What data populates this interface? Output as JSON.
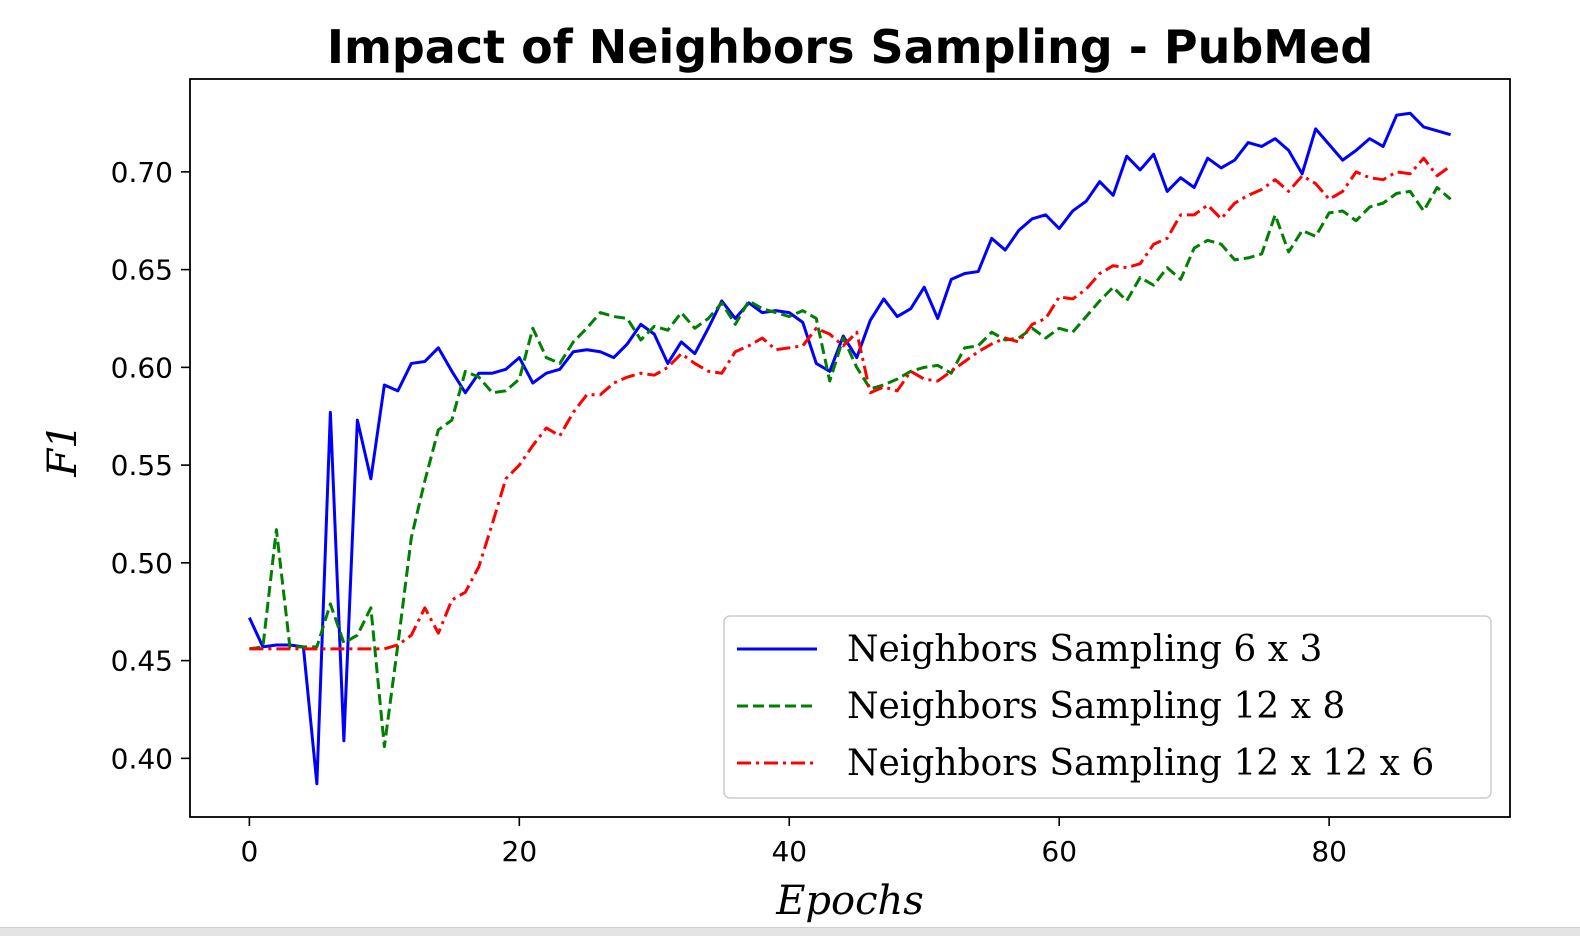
{
  "chart_data": {
    "type": "line",
    "title": "Impact of Neighbors Sampling - PubMed",
    "xlabel": "Epochs",
    "ylabel": "F1",
    "xlim": [
      -4.4,
      93.4
    ],
    "ylim": [
      0.37,
      0.7475
    ],
    "xticks": [
      0,
      20,
      40,
      60,
      80
    ],
    "xtick_labels": [
      "0",
      "20",
      "40",
      "60",
      "80"
    ],
    "yticks": [
      0.4,
      0.45,
      0.5,
      0.55,
      0.6,
      0.65,
      0.7
    ],
    "ytick_labels": [
      "0.40",
      "0.45",
      "0.50",
      "0.55",
      "0.60",
      "0.65",
      "0.70"
    ],
    "grid": false,
    "legend_position": "lower-right",
    "x": [
      0,
      1,
      2,
      3,
      4,
      5,
      6,
      7,
      8,
      9,
      10,
      11,
      12,
      13,
      14,
      15,
      16,
      17,
      18,
      19,
      20,
      21,
      22,
      23,
      24,
      25,
      26,
      27,
      28,
      29,
      30,
      31,
      32,
      33,
      34,
      35,
      36,
      37,
      38,
      39,
      40,
      41,
      42,
      43,
      44,
      45,
      46,
      47,
      48,
      49,
      50,
      51,
      52,
      53,
      54,
      55,
      56,
      57,
      58,
      59,
      60,
      61,
      62,
      63,
      64,
      65,
      66,
      67,
      68,
      69,
      70,
      71,
      72,
      73,
      74,
      75,
      76,
      77,
      78,
      79,
      80,
      81,
      82,
      83,
      84,
      85,
      86,
      87,
      88,
      89
    ],
    "series": [
      {
        "name": "Neighbors Sampling 6 x 3",
        "color": "#0000ff",
        "style": "solid",
        "values": [
          0.472,
          0.457,
          0.458,
          0.458,
          0.457,
          0.387,
          0.577,
          0.409,
          0.573,
          0.543,
          0.591,
          0.588,
          0.602,
          0.603,
          0.61,
          0.598,
          0.587,
          0.597,
          0.597,
          0.599,
          0.605,
          0.592,
          0.597,
          0.599,
          0.608,
          0.609,
          0.608,
          0.605,
          0.612,
          0.622,
          0.617,
          0.602,
          0.613,
          0.607,
          0.62,
          0.634,
          0.625,
          0.633,
          0.628,
          0.629,
          0.628,
          0.623,
          0.602,
          0.598,
          0.616,
          0.605,
          0.624,
          0.635,
          0.626,
          0.63,
          0.641,
          0.625,
          0.645,
          0.648,
          0.649,
          0.666,
          0.66,
          0.67,
          0.676,
          0.678,
          0.671,
          0.68,
          0.685,
          0.695,
          0.688,
          0.708,
          0.701,
          0.709,
          0.69,
          0.697,
          0.692,
          0.707,
          0.702,
          0.706,
          0.715,
          0.713,
          0.717,
          0.711,
          0.699,
          0.722,
          0.714,
          0.706,
          0.711,
          0.717,
          0.713,
          0.729,
          0.73,
          0.723,
          0.721,
          0.719
        ]
      },
      {
        "name": "Neighbors Sampling 12 x 8",
        "color": "#007f00",
        "style": "dashed",
        "values": [
          0.456,
          0.457,
          0.517,
          0.457,
          0.457,
          0.457,
          0.479,
          0.459,
          0.463,
          0.477,
          0.406,
          0.458,
          0.513,
          0.542,
          0.568,
          0.573,
          0.598,
          0.595,
          0.587,
          0.588,
          0.594,
          0.62,
          0.605,
          0.602,
          0.613,
          0.62,
          0.628,
          0.626,
          0.625,
          0.614,
          0.621,
          0.619,
          0.628,
          0.62,
          0.625,
          0.633,
          0.622,
          0.634,
          0.63,
          0.628,
          0.626,
          0.629,
          0.625,
          0.593,
          0.615,
          0.6,
          0.589,
          0.591,
          0.594,
          0.598,
          0.6,
          0.601,
          0.597,
          0.61,
          0.611,
          0.618,
          0.614,
          0.615,
          0.62,
          0.615,
          0.62,
          0.618,
          0.626,
          0.634,
          0.641,
          0.634,
          0.646,
          0.642,
          0.651,
          0.645,
          0.661,
          0.665,
          0.663,
          0.655,
          0.656,
          0.658,
          0.678,
          0.659,
          0.67,
          0.667,
          0.679,
          0.68,
          0.675,
          0.682,
          0.684,
          0.689,
          0.69,
          0.68,
          0.692,
          0.686
        ]
      },
      {
        "name": "Neighbors Sampling 12 x 12 x 6",
        "color": "#ff0000",
        "style": "dashdot",
        "values": [
          0.456,
          0.456,
          0.456,
          0.456,
          0.456,
          0.456,
          0.456,
          0.456,
          0.456,
          0.456,
          0.456,
          0.458,
          0.463,
          0.477,
          0.464,
          0.481,
          0.485,
          0.498,
          0.52,
          0.543,
          0.55,
          0.56,
          0.569,
          0.565,
          0.577,
          0.586,
          0.586,
          0.592,
          0.595,
          0.597,
          0.596,
          0.6,
          0.607,
          0.602,
          0.598,
          0.597,
          0.608,
          0.611,
          0.615,
          0.609,
          0.61,
          0.611,
          0.62,
          0.617,
          0.611,
          0.618,
          0.587,
          0.59,
          0.588,
          0.598,
          0.594,
          0.593,
          0.598,
          0.603,
          0.608,
          0.612,
          0.615,
          0.613,
          0.622,
          0.625,
          0.636,
          0.635,
          0.64,
          0.648,
          0.652,
          0.651,
          0.653,
          0.663,
          0.666,
          0.678,
          0.678,
          0.683,
          0.676,
          0.684,
          0.688,
          0.691,
          0.696,
          0.69,
          0.698,
          0.694,
          0.686,
          0.69,
          0.7,
          0.697,
          0.696,
          0.7,
          0.699,
          0.707,
          0.698,
          0.703
        ]
      }
    ]
  }
}
